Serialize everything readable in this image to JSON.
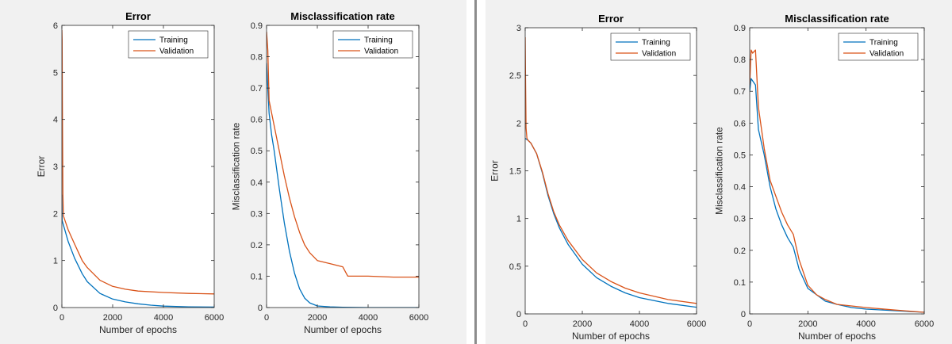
{
  "colors": {
    "training": "#0072bd",
    "validation": "#d95319",
    "frame": "#262626",
    "figure_bg": "#f1f1f1",
    "axes_bg": "#ffffff"
  },
  "chart_data": [
    {
      "type": "line",
      "title": "Error",
      "xlabel": "Number of epochs",
      "ylabel": "Error",
      "xlim": [
        0,
        6000
      ],
      "ylim": [
        0,
        6
      ],
      "xticks": [
        "0",
        "2000",
        "4000",
        "6000"
      ],
      "yticks": [
        "0",
        "1",
        "2",
        "3",
        "4",
        "5",
        "6"
      ],
      "grid": false,
      "legend_position": "top-right",
      "series": [
        {
          "name": "Training",
          "x": [
            0,
            10,
            250,
            500,
            800,
            1000,
            1500,
            2000,
            2500,
            3000,
            3500,
            4000,
            5000,
            6000
          ],
          "y": [
            2.4,
            1.85,
            1.4,
            1.05,
            0.72,
            0.55,
            0.3,
            0.18,
            0.12,
            0.08,
            0.05,
            0.03,
            0.015,
            0.01
          ]
        },
        {
          "name": "Validation",
          "x": [
            0,
            10,
            20,
            40,
            60,
            250,
            500,
            800,
            1000,
            1500,
            2000,
            2500,
            3000,
            4000,
            5000,
            6000
          ],
          "y": [
            5.9,
            5.7,
            4.4,
            2.4,
            1.95,
            1.65,
            1.35,
            1.0,
            0.85,
            0.58,
            0.45,
            0.39,
            0.35,
            0.32,
            0.3,
            0.29
          ]
        }
      ]
    },
    {
      "type": "line",
      "title": "Misclassification rate",
      "xlabel": "Number of epochs",
      "ylabel": "Misclassification rate",
      "xlim": [
        0,
        6000
      ],
      "ylim": [
        0,
        0.9
      ],
      "xticks": [
        "0",
        "2000",
        "4000",
        "6000"
      ],
      "yticks": [
        "0",
        "0.1",
        "0.2",
        "0.3",
        "0.4",
        "0.5",
        "0.6",
        "0.7",
        "0.8",
        "0.9"
      ],
      "grid": false,
      "legend_position": "top-right",
      "series": [
        {
          "name": "Training",
          "x": [
            0,
            100,
            200,
            300,
            500,
            700,
            900,
            1100,
            1300,
            1500,
            1700,
            2000,
            2500,
            3000,
            4000,
            6000
          ],
          "y": [
            0.78,
            0.62,
            0.55,
            0.5,
            0.38,
            0.27,
            0.18,
            0.11,
            0.06,
            0.03,
            0.015,
            0.005,
            0.002,
            0.001,
            0.0,
            0.0
          ]
        },
        {
          "name": "Validation",
          "x": [
            0,
            50,
            100,
            200,
            300,
            500,
            700,
            900,
            1100,
            1300,
            1500,
            1700,
            2000,
            2500,
            3000,
            3200,
            3500,
            4000,
            5000,
            6000
          ],
          "y": [
            0.88,
            0.82,
            0.66,
            0.62,
            0.58,
            0.5,
            0.42,
            0.35,
            0.29,
            0.24,
            0.2,
            0.175,
            0.15,
            0.14,
            0.13,
            0.1,
            0.1,
            0.1,
            0.097,
            0.097
          ]
        }
      ]
    },
    {
      "type": "line",
      "title": "Error",
      "xlabel": "Number of epochs",
      "ylabel": "Error",
      "xlim": [
        0,
        6000
      ],
      "ylim": [
        0,
        3
      ],
      "xticks": [
        "0",
        "2000",
        "4000",
        "6000"
      ],
      "yticks": [
        "0",
        "0.5",
        "1",
        "1.5",
        "2",
        "2.5",
        "3"
      ],
      "grid": false,
      "legend_position": "top-right",
      "series": [
        {
          "name": "Training",
          "x": [
            0,
            100,
            200,
            400,
            600,
            800,
            1000,
            1200,
            1500,
            2000,
            2500,
            3000,
            3500,
            4000,
            5000,
            6000
          ],
          "y": [
            1.84,
            1.82,
            1.79,
            1.68,
            1.48,
            1.24,
            1.05,
            0.9,
            0.73,
            0.52,
            0.38,
            0.29,
            0.22,
            0.17,
            0.11,
            0.07
          ]
        },
        {
          "name": "Validation",
          "x": [
            0,
            10,
            30,
            60,
            100,
            200,
            400,
            600,
            800,
            1000,
            1200,
            1500,
            2000,
            2500,
            3000,
            3500,
            4000,
            5000,
            6000
          ],
          "y": [
            2.9,
            2.5,
            1.95,
            1.84,
            1.82,
            1.79,
            1.68,
            1.49,
            1.26,
            1.07,
            0.93,
            0.77,
            0.57,
            0.43,
            0.34,
            0.27,
            0.22,
            0.15,
            0.11
          ]
        }
      ]
    },
    {
      "type": "line",
      "title": "Misclassification rate",
      "xlabel": "Number of epochs",
      "ylabel": "Misclassification rate",
      "xlim": [
        0,
        6000
      ],
      "ylim": [
        0,
        0.9
      ],
      "xticks": [
        "0",
        "2000",
        "4000",
        "6000"
      ],
      "yticks": [
        "0",
        "0.1",
        "0.2",
        "0.3",
        "0.4",
        "0.5",
        "0.6",
        "0.7",
        "0.8",
        "0.9"
      ],
      "grid": false,
      "legend_position": "top-right",
      "series": [
        {
          "name": "Training",
          "x": [
            0,
            50,
            200,
            300,
            500,
            700,
            900,
            1100,
            1300,
            1500,
            1700,
            2000,
            2300,
            2600,
            3000,
            3500,
            4000,
            5000,
            6000
          ],
          "y": [
            0.7,
            0.74,
            0.72,
            0.58,
            0.5,
            0.4,
            0.33,
            0.28,
            0.24,
            0.21,
            0.14,
            0.08,
            0.06,
            0.04,
            0.03,
            0.02,
            0.015,
            0.01,
            0.005
          ]
        },
        {
          "name": "Validation",
          "x": [
            0,
            50,
            100,
            200,
            300,
            500,
            700,
            900,
            1100,
            1300,
            1500,
            1700,
            2000,
            2300,
            2600,
            3000,
            3500,
            4000,
            5000,
            6000
          ],
          "y": [
            0.72,
            0.83,
            0.82,
            0.83,
            0.65,
            0.52,
            0.42,
            0.37,
            0.32,
            0.28,
            0.25,
            0.17,
            0.09,
            0.06,
            0.045,
            0.03,
            0.025,
            0.02,
            0.012,
            0.005
          ]
        }
      ]
    }
  ]
}
